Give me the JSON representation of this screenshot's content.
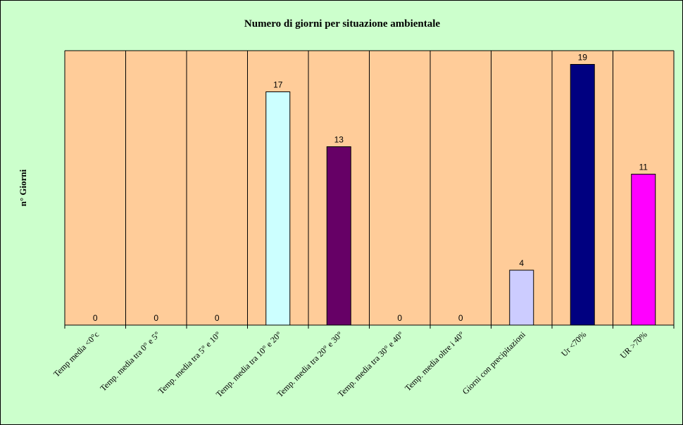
{
  "chart_data": {
    "type": "bar",
    "title": "Numero di giorni per situazione ambientale",
    "xlabel": "",
    "ylabel": "n° Giorni",
    "ylim": [
      0,
      20
    ],
    "grid": false,
    "categories": [
      "Temp media <0°c",
      "Temp. media tra 0° e 5°",
      "Temp. media tra 5° e 10°",
      "Temp. media tra 10° e 20°",
      "Temp. media tra 20° e 30°",
      "Temp. media tra 30° e 40°",
      "Temp. media oltre i 40°",
      "Giorni con precipitazioni",
      "Ur <70%",
      "UR >70%"
    ],
    "values": [
      0,
      0,
      0,
      17,
      13,
      0,
      0,
      4,
      19,
      11
    ],
    "value_labels": [
      "0",
      "0",
      "0",
      "17",
      "13",
      "0",
      "0",
      "4",
      "19",
      "11"
    ],
    "colors": [
      "#ccffff",
      "#ccffff",
      "#ccffff",
      "#ccffff",
      "#660066",
      "#660066",
      "#660066",
      "#ccccff",
      "#000080",
      "#ff00ff"
    ],
    "plot_background": "#ffcc99",
    "chart_background": "#ccffcc"
  }
}
